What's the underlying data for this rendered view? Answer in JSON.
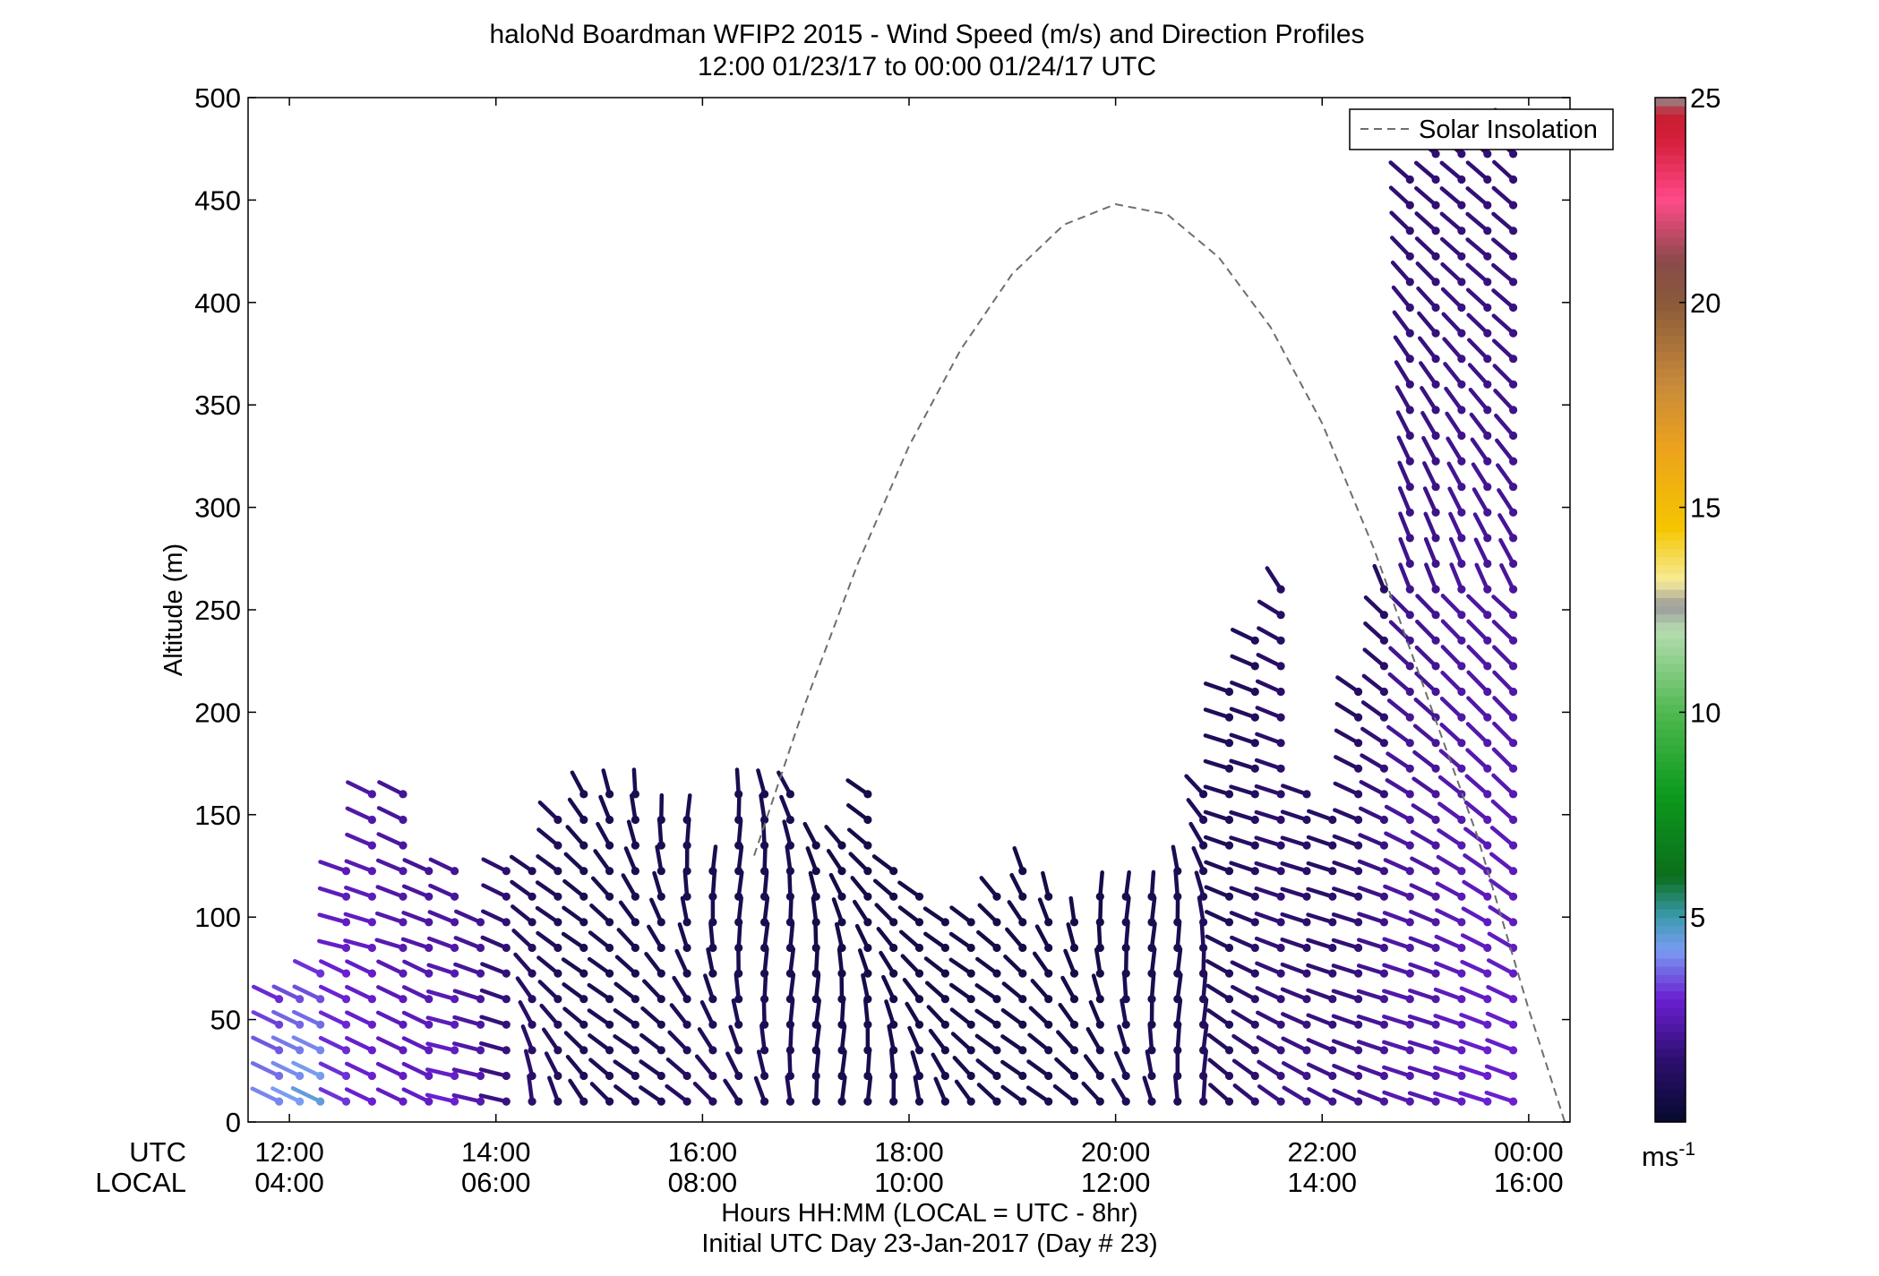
{
  "chart_data": {
    "type": "wind-barb-profile",
    "title": "haloNd Boardman WFIP2 2015 - Wind Speed (m/s) and Direction Profiles",
    "subtitle": "12:00 01/23/17 to 00:00 01/24/17  UTC",
    "ylabel": "Altitude (m)",
    "xlabel": "Hours HH:MM  (LOCAL = UTC - 8hr)",
    "xlabel2": "Initial UTC Day 23-Jan-2017 (Day # 23)",
    "utc_row_label": "UTC",
    "local_row_label": "LOCAL",
    "xlim_hours_utc": [
      11.6,
      24.4
    ],
    "ylim": [
      0,
      500
    ],
    "yticks": [
      "0",
      "50",
      "100",
      "150",
      "200",
      "250",
      "300",
      "350",
      "400",
      "450",
      "500"
    ],
    "xticks_utc": [
      "12:00",
      "14:00",
      "16:00",
      "18:00",
      "20:00",
      "22:00",
      "00:00"
    ],
    "xticks_local": [
      "04:00",
      "06:00",
      "08:00",
      "10:00",
      "12:00",
      "14:00",
      "16:00"
    ],
    "legend": {
      "label": "Solar Insolation",
      "placement": "top-right",
      "style": "dashed gray line"
    },
    "colorbar": {
      "label": "ms",
      "label_superscript": "-1",
      "range": [
        0,
        25
      ],
      "ticks": [
        "5",
        "10",
        "15",
        "20",
        "25"
      ],
      "stops": [
        {
          "v": 0.0,
          "color": "#050a2e"
        },
        {
          "v": 1.5,
          "color": "#2d0f6e"
        },
        {
          "v": 3.0,
          "color": "#6a1fd1"
        },
        {
          "v": 4.2,
          "color": "#7a9cf2"
        },
        {
          "v": 5.0,
          "color": "#3c9bb0"
        },
        {
          "v": 6.0,
          "color": "#0c6e1c"
        },
        {
          "v": 8.0,
          "color": "#0c9a1c"
        },
        {
          "v": 10.0,
          "color": "#4fb850"
        },
        {
          "v": 12.0,
          "color": "#b5ddb0"
        },
        {
          "v": 12.6,
          "color": "#9a9a9a"
        },
        {
          "v": 13.2,
          "color": "#f6ec9a"
        },
        {
          "v": 14.5,
          "color": "#f5c600"
        },
        {
          "v": 16.5,
          "color": "#eca21e"
        },
        {
          "v": 18.0,
          "color": "#c88a3a"
        },
        {
          "v": 20.0,
          "color": "#8a5a3a"
        },
        {
          "v": 21.0,
          "color": "#8a4a4a"
        },
        {
          "v": 22.5,
          "color": "#ff4a8a"
        },
        {
          "v": 24.0,
          "color": "#d41e3a"
        },
        {
          "v": 24.6,
          "color": "#c81e32"
        },
        {
          "v": 25.0,
          "color": "#909090"
        }
      ]
    },
    "solar_insolation": {
      "hours_utc": [
        16.5,
        17.0,
        17.5,
        18.0,
        18.5,
        19.0,
        19.5,
        20.0,
        20.5,
        21.0,
        21.5,
        22.0,
        22.5,
        23.0,
        23.5,
        24.0,
        24.35
      ],
      "altitude_equiv_m": [
        130,
        205,
        272,
        330,
        377,
        414,
        438,
        448,
        443,
        422,
        388,
        341,
        280,
        210,
        140,
        55,
        0
      ]
    },
    "profiles": [
      {
        "t": 11.9,
        "top": 65,
        "speed": [
          4.0,
          3.5,
          3.0
        ]
      },
      {
        "t": 12.1,
        "top": 72,
        "speed": [
          4.2,
          3.8,
          3.2
        ]
      },
      {
        "t": 12.3,
        "top": 80,
        "speed": [
          4.5,
          3.8,
          3.0
        ]
      },
      {
        "t": 12.55,
        "top": 132,
        "speed": [
          3.2,
          3.0,
          2.5
        ]
      },
      {
        "t": 12.8,
        "top": 172,
        "speed": [
          3.0,
          2.8,
          2.2
        ]
      },
      {
        "t": 13.1,
        "top": 172,
        "speed": [
          2.8,
          2.5,
          2.0
        ]
      },
      {
        "t": 13.35,
        "top": 132,
        "speed": [
          2.8,
          2.5,
          2.0
        ]
      },
      {
        "t": 13.6,
        "top": 128,
        "speed": [
          3.0,
          2.5,
          2.0
        ]
      },
      {
        "t": 13.85,
        "top": 104,
        "speed": [
          2.5,
          2.2,
          2.0
        ]
      },
      {
        "t": 14.1,
        "top": 130,
        "speed": [
          1.8,
          1.6,
          1.5
        ]
      },
      {
        "t": 14.35,
        "top": 132,
        "speed": [
          1.5,
          1.2,
          1.0
        ]
      },
      {
        "t": 14.6,
        "top": 148,
        "speed": [
          1.2,
          1.0,
          1.0
        ]
      },
      {
        "t": 14.85,
        "top": 172,
        "speed": [
          1.0,
          0.8,
          0.8
        ]
      },
      {
        "t": 15.1,
        "top": 170,
        "speed": [
          1.0,
          0.8,
          0.8
        ]
      },
      {
        "t": 15.35,
        "top": 160,
        "speed": [
          1.0,
          0.8,
          0.8
        ]
      },
      {
        "t": 15.6,
        "top": 155,
        "speed": [
          1.0,
          0.8,
          0.8
        ]
      },
      {
        "t": 15.85,
        "top": 155,
        "speed": [
          1.2,
          0.8,
          0.8
        ]
      },
      {
        "t": 16.1,
        "top": 132,
        "speed": [
          1.2,
          0.8,
          0.8
        ]
      },
      {
        "t": 16.35,
        "top": 162,
        "speed": [
          1.0,
          0.8,
          0.8
        ]
      },
      {
        "t": 16.6,
        "top": 162,
        "speed": [
          1.0,
          0.8,
          0.8
        ]
      },
      {
        "t": 16.85,
        "top": 170,
        "speed": [
          1.0,
          0.8,
          0.8
        ]
      },
      {
        "t": 17.1,
        "top": 142,
        "speed": [
          0.8,
          0.6,
          0.6
        ]
      },
      {
        "t": 17.35,
        "top": 140,
        "speed": [
          0.8,
          0.6,
          0.6
        ]
      },
      {
        "t": 17.6,
        "top": 162,
        "speed": [
          0.8,
          0.6,
          0.6
        ]
      },
      {
        "t": 17.85,
        "top": 130,
        "speed": [
          0.8,
          0.6,
          0.6
        ]
      },
      {
        "t": 18.1,
        "top": 115,
        "speed": [
          0.8,
          0.6,
          0.6
        ]
      },
      {
        "t": 18.35,
        "top": 106,
        "speed": [
          0.8,
          0.6,
          0.6
        ]
      },
      {
        "t": 18.6,
        "top": 106,
        "speed": [
          0.8,
          0.6,
          0.6
        ]
      },
      {
        "t": 18.85,
        "top": 122,
        "speed": [
          0.8,
          0.6,
          0.6
        ]
      },
      {
        "t": 19.1,
        "top": 132,
        "speed": [
          0.8,
          0.6,
          0.6
        ]
      },
      {
        "t": 19.35,
        "top": 112,
        "speed": [
          0.8,
          0.6,
          0.6
        ]
      },
      {
        "t": 19.6,
        "top": 106,
        "speed": [
          0.8,
          0.6,
          0.6
        ]
      },
      {
        "t": 19.85,
        "top": 112,
        "speed": [
          0.8,
          0.6,
          0.6
        ]
      },
      {
        "t": 20.1,
        "top": 115,
        "speed": [
          1.0,
          0.8,
          0.8
        ]
      },
      {
        "t": 20.35,
        "top": 122,
        "speed": [
          1.0,
          0.8,
          0.8
        ]
      },
      {
        "t": 20.6,
        "top": 126,
        "speed": [
          1.0,
          0.8,
          0.8
        ]
      },
      {
        "t": 20.85,
        "top": 160,
        "speed": [
          1.2,
          1.0,
          1.0
        ]
      },
      {
        "t": 21.1,
        "top": 210,
        "speed": [
          1.2,
          1.0,
          1.0
        ]
      },
      {
        "t": 21.35,
        "top": 240,
        "speed": [
          1.5,
          1.2,
          1.0
        ]
      },
      {
        "t": 21.6,
        "top": 265,
        "speed": [
          1.8,
          1.5,
          1.2
        ]
      },
      {
        "t": 21.85,
        "top": 172,
        "speed": [
          2.0,
          1.5,
          1.2
        ]
      },
      {
        "t": 22.1,
        "top": 150,
        "speed": [
          2.0,
          1.5,
          1.2
        ]
      },
      {
        "t": 22.35,
        "top": 210,
        "speed": [
          2.0,
          1.5,
          1.2
        ]
      },
      {
        "t": 22.6,
        "top": 260,
        "speed": [
          2.2,
          1.8,
          1.2
        ]
      },
      {
        "t": 22.85,
        "top": 465,
        "speed": [
          2.5,
          2.0,
          1.5
        ]
      },
      {
        "t": 23.1,
        "top": 480,
        "speed": [
          2.5,
          2.0,
          1.5
        ]
      },
      {
        "t": 23.35,
        "top": 495,
        "speed": [
          2.8,
          2.2,
          1.5
        ]
      },
      {
        "t": 23.6,
        "top": 495,
        "speed": [
          3.0,
          2.2,
          1.5
        ]
      },
      {
        "t": 23.85,
        "top": 495,
        "speed": [
          3.0,
          2.2,
          1.5
        ]
      }
    ]
  }
}
